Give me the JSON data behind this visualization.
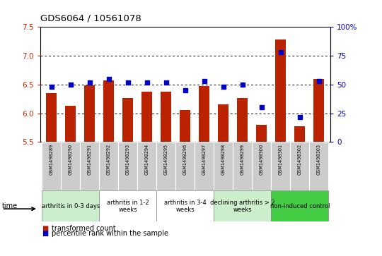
{
  "title": "GDS6064 / 10561078",
  "samples": [
    "GSM1498289",
    "GSM1498290",
    "GSM1498291",
    "GSM1498292",
    "GSM1498293",
    "GSM1498294",
    "GSM1498295",
    "GSM1498296",
    "GSM1498297",
    "GSM1498298",
    "GSM1498299",
    "GSM1498300",
    "GSM1498301",
    "GSM1498302",
    "GSM1498303"
  ],
  "bar_values": [
    6.35,
    6.13,
    6.48,
    6.57,
    6.27,
    6.37,
    6.37,
    6.06,
    6.47,
    6.15,
    6.27,
    5.8,
    7.28,
    5.77,
    6.6
  ],
  "dot_values": [
    48,
    50,
    52,
    55,
    52,
    52,
    52,
    45,
    53,
    48,
    50,
    30,
    78,
    22,
    53
  ],
  "ylim_left": [
    5.5,
    7.5
  ],
  "ylim_right": [
    0,
    100
  ],
  "yticks_left": [
    5.5,
    6.0,
    6.5,
    7.0,
    7.5
  ],
  "yticks_right": [
    0,
    25,
    50,
    75,
    100
  ],
  "ytick_labels_right": [
    "0",
    "25",
    "50",
    "75",
    "100%"
  ],
  "hlines": [
    6.0,
    6.5,
    7.0
  ],
  "bar_color": "#bb2200",
  "dot_color": "#0000cc",
  "groups": [
    {
      "label": "arthritis in 0-3 days",
      "start": 0,
      "end": 3,
      "color": "#cceecc"
    },
    {
      "label": "arthritis in 1-2\nweeks",
      "start": 3,
      "end": 6,
      "color": "#ffffff"
    },
    {
      "label": "arthritis in 3-4\nweeks",
      "start": 6,
      "end": 9,
      "color": "#ffffff"
    },
    {
      "label": "declining arthritis > 2\nweeks",
      "start": 9,
      "end": 12,
      "color": "#cceecc"
    },
    {
      "label": "non-induced control",
      "start": 12,
      "end": 15,
      "color": "#44cc44"
    }
  ],
  "time_label": "time",
  "legend_bar_label": "transformed count",
  "legend_dot_label": "percentile rank within the sample"
}
